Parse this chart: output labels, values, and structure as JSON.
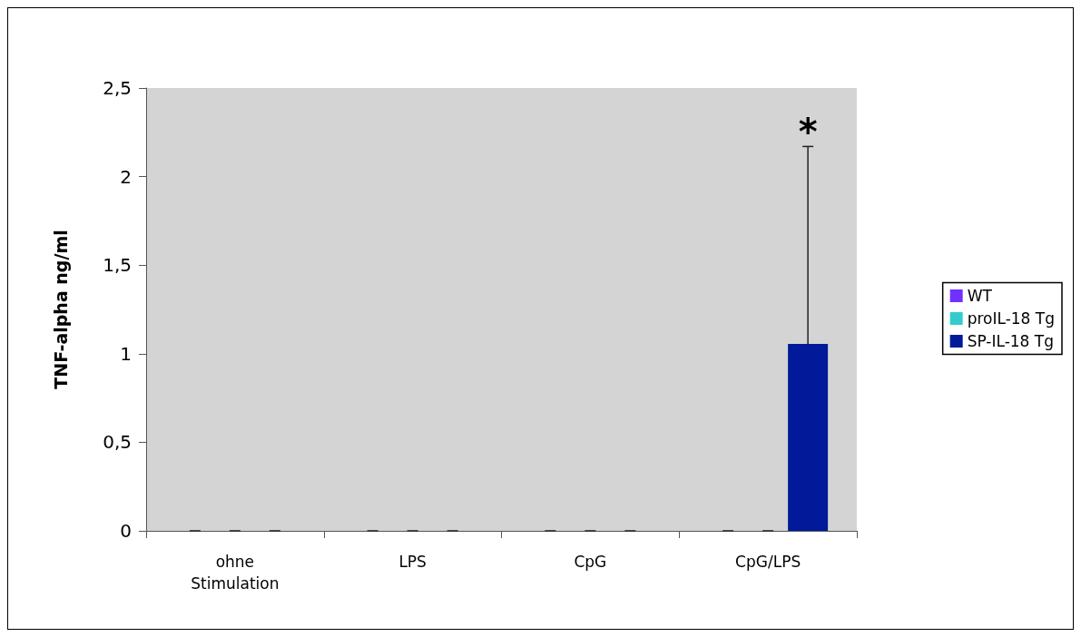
{
  "chart_data": {
    "type": "bar",
    "ylabel": "TNF-alpha ng/ml",
    "categories": [
      "ohne\nStimulation",
      "LPS",
      "CpG",
      "CpG/LPS"
    ],
    "series": [
      {
        "name": "WT",
        "color": "#7030ff",
        "values": [
          0,
          0,
          0,
          0
        ],
        "errors": [
          0,
          0,
          0,
          0
        ]
      },
      {
        "name": "proIL-18 Tg",
        "color": "#33cccc",
        "values": [
          0,
          0,
          0,
          0
        ],
        "errors": [
          0,
          0,
          0,
          0
        ]
      },
      {
        "name": "SP-IL-18 Tg",
        "color": "#001a99",
        "values": [
          0,
          0,
          0,
          1.055
        ],
        "errors": [
          0,
          0,
          0,
          [
            1.055,
            2.17
          ]
        ]
      }
    ],
    "ylim": [
      0,
      2.5
    ],
    "yticks": [
      0,
      {
        "value": 0.5,
        "label": "0,5"
      },
      1,
      {
        "value": 1.5,
        "label": "1,5"
      },
      2,
      {
        "value": 2.5,
        "label": "2,5"
      }
    ],
    "grid": false,
    "legend": "right",
    "annotations": [
      "*"
    ]
  }
}
